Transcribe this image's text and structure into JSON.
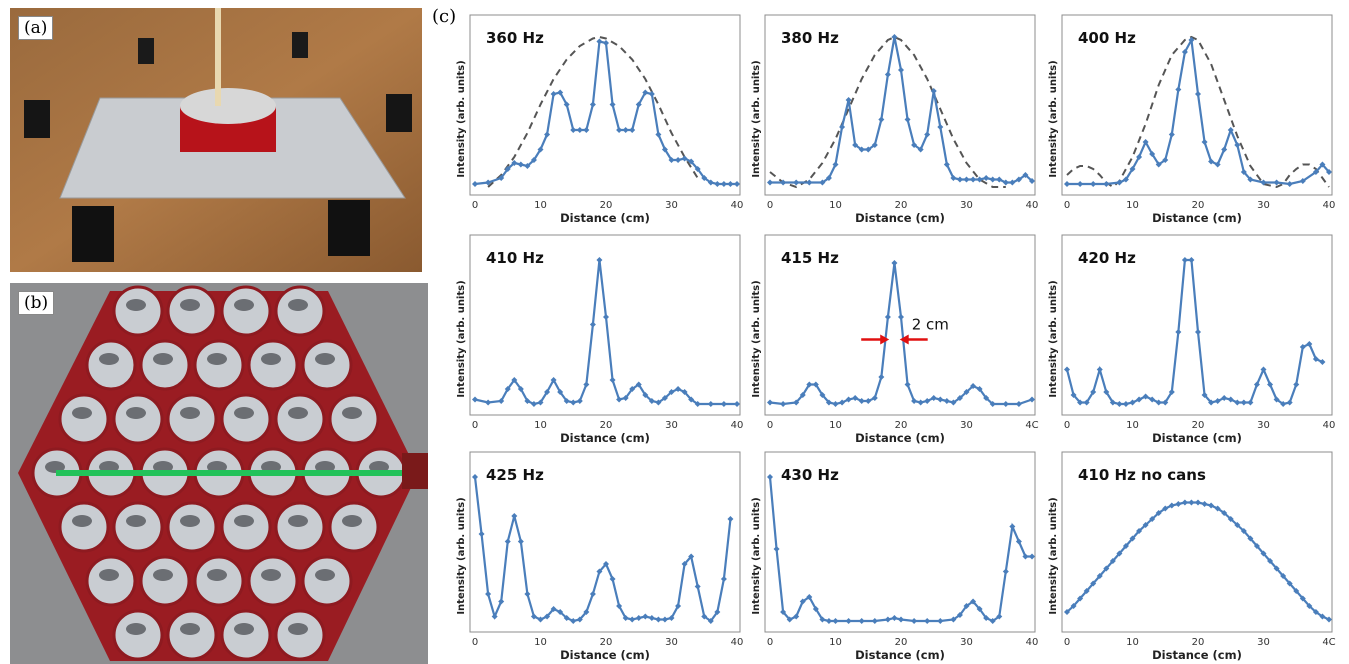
{
  "figure": {
    "panel_labels": {
      "a": "(a)",
      "b": "(b)",
      "c": "(c)"
    },
    "series_color": "#4a7ebb",
    "envelope_color": "#555555",
    "annotation_color": "#e01010",
    "line_color_b": "#22c25a"
  },
  "chart_data": [
    {
      "type": "line",
      "title": "360 Hz",
      "xlabel": "Distance (cm)",
      "ylabel": "Intensity (arb. units)",
      "xlim": [
        0,
        40
      ],
      "ylim": [
        0,
        1
      ],
      "xticks": [
        "0",
        "10",
        "20",
        "30",
        "40"
      ],
      "series": [
        {
          "x": [
            0,
            2,
            4,
            5,
            6,
            7,
            8,
            9,
            10,
            11,
            12,
            13,
            14,
            15,
            16,
            17,
            18,
            19,
            20,
            21,
            22,
            23,
            24,
            25,
            26,
            27,
            28,
            29,
            30,
            31,
            32,
            33,
            34,
            35,
            36,
            37,
            38,
            39,
            40
          ],
          "y": [
            0.02,
            0.03,
            0.06,
            0.12,
            0.16,
            0.15,
            0.14,
            0.18,
            0.25,
            0.35,
            0.62,
            0.63,
            0.55,
            0.38,
            0.38,
            0.38,
            0.55,
            0.97,
            0.96,
            0.55,
            0.38,
            0.38,
            0.38,
            0.55,
            0.63,
            0.62,
            0.35,
            0.25,
            0.18,
            0.18,
            0.19,
            0.17,
            0.12,
            0.06,
            0.03,
            0.02,
            0.02,
            0.02,
            0.02
          ]
        }
      ],
      "envelope": {
        "x": [
          2,
          4,
          6,
          8,
          10,
          12,
          14,
          16,
          18,
          19,
          20,
          22,
          24,
          26,
          28,
          30,
          32,
          34
        ],
        "y": [
          0.0,
          0.08,
          0.2,
          0.36,
          0.55,
          0.72,
          0.85,
          0.94,
          0.99,
          1.0,
          0.99,
          0.94,
          0.85,
          0.72,
          0.55,
          0.36,
          0.2,
          0.06
        ]
      }
    },
    {
      "type": "line",
      "title": "380 Hz",
      "xlabel": "Distance (cm)",
      "ylabel": "Intensity (arb. units)",
      "xlim": [
        0,
        40
      ],
      "ylim": [
        0,
        1
      ],
      "xticks": [
        "0",
        "10",
        "20",
        "30",
        "40"
      ],
      "series": [
        {
          "x": [
            0,
            2,
            4,
            6,
            8,
            9,
            10,
            11,
            12,
            13,
            14,
            15,
            16,
            17,
            18,
            19,
            20,
            21,
            22,
            23,
            24,
            25,
            26,
            27,
            28,
            29,
            30,
            31,
            32,
            33,
            34,
            35,
            36,
            37,
            38,
            39,
            40
          ],
          "y": [
            0.03,
            0.03,
            0.03,
            0.03,
            0.03,
            0.06,
            0.15,
            0.4,
            0.58,
            0.28,
            0.25,
            0.25,
            0.28,
            0.45,
            0.75,
            1.0,
            0.78,
            0.45,
            0.28,
            0.25,
            0.35,
            0.64,
            0.4,
            0.15,
            0.06,
            0.05,
            0.05,
            0.05,
            0.05,
            0.06,
            0.05,
            0.05,
            0.03,
            0.03,
            0.05,
            0.08,
            0.04
          ]
        }
      ],
      "envelope": {
        "x": [
          0,
          2,
          4,
          6,
          8,
          10,
          12,
          14,
          16,
          18,
          19,
          20,
          22,
          24,
          26,
          28,
          30,
          32,
          34,
          36
        ],
        "y": [
          0.1,
          0.03,
          0.0,
          0.05,
          0.16,
          0.32,
          0.52,
          0.72,
          0.88,
          0.98,
          1.0,
          0.98,
          0.88,
          0.72,
          0.52,
          0.32,
          0.16,
          0.05,
          0.0,
          0.0
        ]
      }
    },
    {
      "type": "line",
      "title": "400 Hz",
      "xlabel": "Distance (cm)",
      "ylabel": "Intensity (arb. units)",
      "xlim": [
        0,
        40
      ],
      "ylim": [
        0,
        1
      ],
      "xticks": [
        "0",
        "10",
        "20",
        "30",
        "40"
      ],
      "series": [
        {
          "x": [
            0,
            2,
            4,
            6,
            8,
            9,
            10,
            11,
            12,
            13,
            14,
            15,
            16,
            17,
            18,
            19,
            20,
            21,
            22,
            23,
            24,
            25,
            26,
            27,
            28,
            30,
            32,
            34,
            36,
            38,
            39,
            40
          ],
          "y": [
            0.02,
            0.02,
            0.02,
            0.02,
            0.03,
            0.05,
            0.12,
            0.2,
            0.3,
            0.22,
            0.15,
            0.18,
            0.35,
            0.65,
            0.9,
            0.98,
            0.62,
            0.3,
            0.17,
            0.15,
            0.25,
            0.38,
            0.28,
            0.1,
            0.05,
            0.03,
            0.03,
            0.02,
            0.04,
            0.1,
            0.15,
            0.1
          ]
        }
      ],
      "envelope": {
        "x": [
          0,
          1,
          2,
          3,
          4,
          5,
          6,
          7,
          8,
          10,
          12,
          14,
          16,
          18,
          19,
          20,
          22,
          24,
          26,
          28,
          30,
          32,
          33,
          34,
          35,
          36,
          37,
          38,
          39,
          40
        ],
        "y": [
          0.08,
          0.12,
          0.14,
          0.14,
          0.12,
          0.08,
          0.03,
          0.0,
          0.04,
          0.2,
          0.42,
          0.68,
          0.88,
          0.98,
          1.0,
          0.98,
          0.82,
          0.58,
          0.34,
          0.14,
          0.02,
          0.0,
          0.02,
          0.08,
          0.12,
          0.15,
          0.15,
          0.12,
          0.06,
          0.0
        ]
      }
    },
    {
      "type": "line",
      "title": "410 Hz",
      "xlabel": "Distance (cm)",
      "ylabel": "Intensity (arb. units)",
      "xlim": [
        0,
        40
      ],
      "ylim": [
        0,
        1
      ],
      "xticks": [
        "0",
        "10",
        "20",
        "30",
        "40"
      ],
      "series": [
        {
          "x": [
            0,
            2,
            4,
            5,
            6,
            7,
            8,
            9,
            10,
            11,
            12,
            13,
            14,
            15,
            16,
            17,
            18,
            19,
            20,
            21,
            22,
            23,
            24,
            25,
            26,
            27,
            28,
            29,
            30,
            31,
            32,
            33,
            34,
            36,
            38,
            40
          ],
          "y": [
            0.05,
            0.03,
            0.04,
            0.12,
            0.18,
            0.12,
            0.04,
            0.02,
            0.03,
            0.1,
            0.18,
            0.1,
            0.04,
            0.03,
            0.04,
            0.15,
            0.55,
            0.98,
            0.6,
            0.18,
            0.05,
            0.06,
            0.12,
            0.15,
            0.08,
            0.04,
            0.03,
            0.06,
            0.1,
            0.12,
            0.1,
            0.05,
            0.02,
            0.02,
            0.02,
            0.02
          ]
        }
      ]
    },
    {
      "type": "line",
      "title": "415 Hz",
      "xlabel": "Distance (cm)",
      "ylabel": "Intensity (arb. units)",
      "xlim": [
        0,
        40
      ],
      "ylim": [
        0,
        1
      ],
      "xticks": [
        "0",
        "10",
        "20",
        "30",
        "4C"
      ],
      "annotation": {
        "text": "2 cm",
        "x1": 18.2,
        "x2": 19.8,
        "y": 0.45
      },
      "series": [
        {
          "x": [
            0,
            2,
            4,
            5,
            6,
            7,
            8,
            9,
            10,
            11,
            12,
            13,
            14,
            15,
            16,
            17,
            18,
            19,
            20,
            21,
            22,
            23,
            24,
            25,
            26,
            27,
            28,
            29,
            30,
            31,
            32,
            33,
            34,
            36,
            38,
            40
          ],
          "y": [
            0.03,
            0.02,
            0.03,
            0.08,
            0.15,
            0.15,
            0.08,
            0.03,
            0.02,
            0.03,
            0.05,
            0.06,
            0.04,
            0.04,
            0.06,
            0.2,
            0.6,
            0.96,
            0.6,
            0.15,
            0.04,
            0.03,
            0.04,
            0.06,
            0.05,
            0.04,
            0.03,
            0.06,
            0.1,
            0.14,
            0.12,
            0.06,
            0.02,
            0.02,
            0.02,
            0.05
          ]
        }
      ]
    },
    {
      "type": "line",
      "title": "420 Hz",
      "xlabel": "Distance (cm)",
      "ylabel": "Intensity (arb. units)",
      "xlim": [
        0,
        40
      ],
      "ylim": [
        0,
        1
      ],
      "xticks": [
        "0",
        "10",
        "20",
        "30",
        "40"
      ],
      "series": [
        {
          "x": [
            0,
            1,
            2,
            3,
            4,
            5,
            6,
            7,
            8,
            9,
            10,
            11,
            12,
            13,
            14,
            15,
            16,
            17,
            18,
            19,
            20,
            21,
            22,
            23,
            24,
            25,
            26,
            27,
            28,
            29,
            30,
            31,
            32,
            33,
            34,
            35,
            36,
            37,
            38,
            39
          ],
          "y": [
            0.25,
            0.08,
            0.03,
            0.03,
            0.1,
            0.25,
            0.1,
            0.03,
            0.02,
            0.02,
            0.03,
            0.05,
            0.07,
            0.05,
            0.03,
            0.03,
            0.1,
            0.5,
            0.98,
            0.98,
            0.5,
            0.08,
            0.03,
            0.04,
            0.06,
            0.05,
            0.03,
            0.03,
            0.03,
            0.15,
            0.25,
            0.15,
            0.05,
            0.02,
            0.03,
            0.15,
            0.4,
            0.42,
            0.32,
            0.3
          ]
        }
      ]
    },
    {
      "type": "line",
      "title": "425 Hz",
      "xlabel": "Distance (cm)",
      "ylabel": "Intensity (arb. units)",
      "xlim": [
        0,
        40
      ],
      "ylim": [
        0,
        1
      ],
      "xticks": [
        "0",
        "10",
        "20",
        "30",
        "40"
      ],
      "series": [
        {
          "x": [
            0,
            1,
            2,
            3,
            4,
            5,
            6,
            7,
            8,
            9,
            10,
            11,
            12,
            13,
            14,
            15,
            16,
            17,
            18,
            19,
            20,
            21,
            22,
            23,
            24,
            25,
            26,
            27,
            28,
            29,
            30,
            31,
            32,
            33,
            34,
            35,
            36,
            37,
            38,
            39
          ],
          "y": [
            0.98,
            0.6,
            0.2,
            0.05,
            0.15,
            0.55,
            0.72,
            0.55,
            0.2,
            0.05,
            0.03,
            0.05,
            0.1,
            0.08,
            0.04,
            0.02,
            0.03,
            0.08,
            0.2,
            0.35,
            0.4,
            0.3,
            0.12,
            0.04,
            0.03,
            0.04,
            0.05,
            0.04,
            0.03,
            0.03,
            0.04,
            0.12,
            0.4,
            0.45,
            0.25,
            0.05,
            0.02,
            0.08,
            0.3,
            0.7
          ]
        }
      ]
    },
    {
      "type": "line",
      "title": "430 Hz",
      "xlabel": "Distance (cm)",
      "ylabel": "Intensity (arb. units)",
      "xlim": [
        0,
        40
      ],
      "ylim": [
        0,
        1
      ],
      "xticks": [
        "0",
        "10",
        "20",
        "30",
        "40"
      ],
      "series": [
        {
          "x": [
            0,
            1,
            2,
            3,
            4,
            5,
            6,
            7,
            8,
            9,
            10,
            12,
            14,
            16,
            18,
            19,
            20,
            22,
            24,
            26,
            28,
            29,
            30,
            31,
            32,
            33,
            34,
            35,
            36,
            37,
            38,
            39,
            40
          ],
          "y": [
            0.98,
            0.5,
            0.08,
            0.03,
            0.05,
            0.15,
            0.18,
            0.1,
            0.03,
            0.02,
            0.02,
            0.02,
            0.02,
            0.02,
            0.03,
            0.04,
            0.03,
            0.02,
            0.02,
            0.02,
            0.03,
            0.06,
            0.12,
            0.15,
            0.1,
            0.04,
            0.02,
            0.05,
            0.35,
            0.65,
            0.55,
            0.45,
            0.45
          ]
        }
      ]
    },
    {
      "type": "line",
      "title": "410 Hz no cans",
      "xlabel": "Distance (cm)",
      "ylabel": "Intensity (arb. units)",
      "xlim": [
        0,
        40
      ],
      "ylim": [
        0,
        1
      ],
      "xticks": [
        "0",
        "10",
        "20",
        "30",
        "4C"
      ],
      "series": [
        {
          "x": [
            0,
            1,
            2,
            3,
            4,
            5,
            6,
            7,
            8,
            9,
            10,
            11,
            12,
            13,
            14,
            15,
            16,
            17,
            18,
            19,
            20,
            21,
            22,
            23,
            24,
            25,
            26,
            27,
            28,
            29,
            30,
            31,
            32,
            33,
            34,
            35,
            36,
            37,
            38,
            39,
            40
          ],
          "y": [
            0.08,
            0.12,
            0.17,
            0.22,
            0.27,
            0.32,
            0.37,
            0.42,
            0.47,
            0.52,
            0.57,
            0.62,
            0.66,
            0.7,
            0.74,
            0.77,
            0.79,
            0.8,
            0.81,
            0.81,
            0.81,
            0.8,
            0.79,
            0.77,
            0.74,
            0.7,
            0.66,
            0.62,
            0.57,
            0.52,
            0.47,
            0.42,
            0.37,
            0.32,
            0.27,
            0.22,
            0.17,
            0.12,
            0.08,
            0.05,
            0.03
          ]
        }
      ]
    }
  ]
}
